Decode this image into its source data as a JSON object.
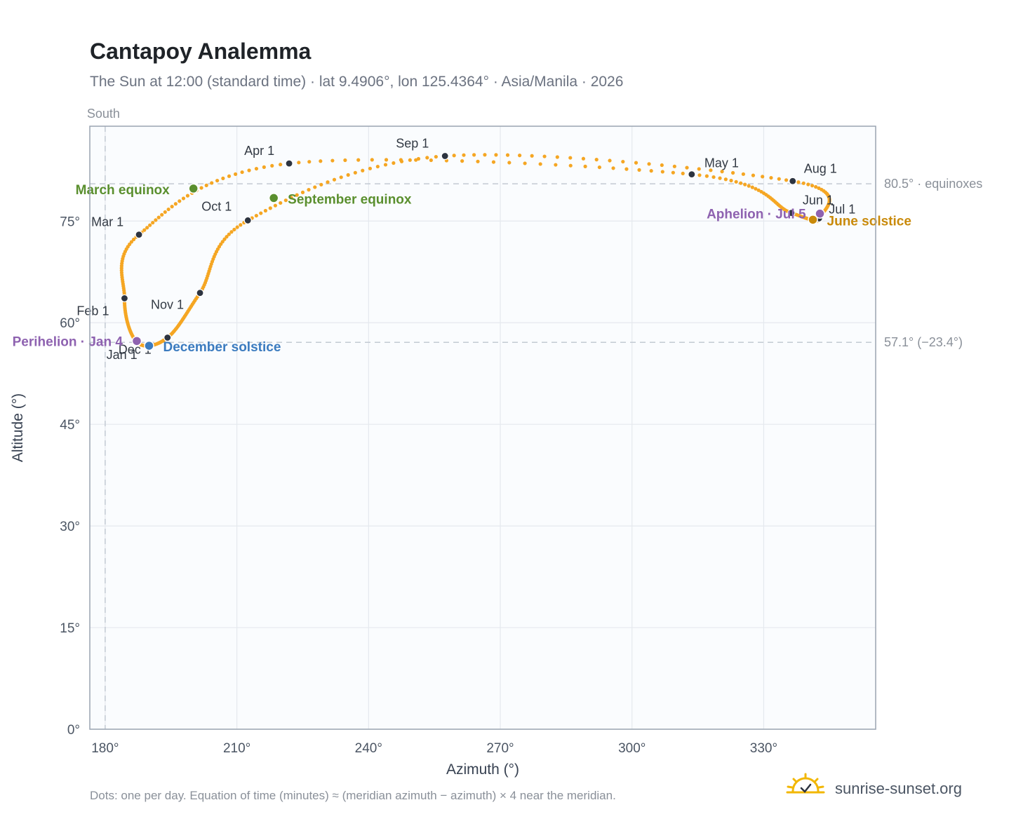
{
  "title": "Cantapoy Analemma",
  "subtitle": "The Sun at 12:00 (standard time) · lat 9.4906°, lon 125.4364° · Asia/Manila · 2026",
  "footnote": "Dots: one per day. Equation of time (minutes) ≈ (meridian azimuth − azimuth) × 4 near the meridian.",
  "brand": "sunrise-sunset.org",
  "colors": {
    "path": "#f5a623",
    "month_marker": "#2d3440",
    "equinox": "#5a8f2e",
    "december_solstice": "#3b7bbf",
    "june_solstice": "#c98a0b",
    "apsis": "#8e62b0",
    "grid": "#e5e9ee",
    "plot_bg": "#fafcfe",
    "frame": "#9aa4b1",
    "ref_line": "#c3cad3"
  },
  "chart_data": {
    "type": "scatter",
    "xlabel": "Azimuth (°)",
    "ylabel": "Altitude (°)",
    "xlim": [
      176.5,
      355.5
    ],
    "ylim": [
      0,
      89
    ],
    "x_ticks": [
      180,
      210,
      240,
      270,
      300,
      330
    ],
    "x_tick_labels": [
      "180°",
      "210°",
      "240°",
      "270°",
      "300°",
      "330°"
    ],
    "y_ticks": [
      0,
      15,
      30,
      45,
      60,
      75
    ],
    "y_tick_labels": [
      "0°",
      "15°",
      "30°",
      "45°",
      "60°",
      "75°"
    ],
    "grid": true,
    "meridian": {
      "azimuth": 180,
      "label": "South"
    },
    "reference_lines": [
      {
        "altitude": 80.5,
        "label": "80.5° · equinoxes"
      },
      {
        "altitude": 57.1,
        "label": "57.1° (−23.4°)"
      }
    ],
    "month_markers": [
      {
        "label": "Jan 1",
        "az": 187.3,
        "alt": 57.1
      },
      {
        "label": "Feb 1",
        "az": 184.4,
        "alt": 63.6
      },
      {
        "label": "Mar 1",
        "az": 187.7,
        "alt": 73.0
      },
      {
        "label": "Apr 1",
        "az": 221.9,
        "alt": 83.5
      },
      {
        "label": "May 1",
        "az": 313.6,
        "alt": 81.9
      },
      {
        "label": "Jun 1",
        "az": 336.3,
        "alt": 76.2
      },
      {
        "label": "Jul 1",
        "az": 342.6,
        "alt": 75.4
      },
      {
        "label": "Aug 1",
        "az": 336.6,
        "alt": 80.9
      },
      {
        "label": "Sep 1",
        "az": 257.4,
        "alt": 84.6
      },
      {
        "label": "Oct 1",
        "az": 212.5,
        "alt": 75.1
      },
      {
        "label": "Nov 1",
        "az": 201.6,
        "alt": 64.4
      },
      {
        "label": "Dec 1",
        "az": 194.2,
        "alt": 57.8
      }
    ],
    "events": [
      {
        "label": "March equinox",
        "az": 200.1,
        "alt": 79.8,
        "kind": "equinox"
      },
      {
        "label": "September equinox",
        "az": 218.4,
        "alt": 78.4,
        "kind": "equinox"
      },
      {
        "label": "December solstice",
        "az": 190.0,
        "alt": 56.6,
        "kind": "december_solstice"
      },
      {
        "label": "June solstice",
        "az": 341.2,
        "alt": 75.2,
        "kind": "june_solstice"
      },
      {
        "label": "Perihelion · Jan 4",
        "az": 187.2,
        "alt": 57.3,
        "kind": "apsis"
      },
      {
        "label": "Aphelion · Jul 5",
        "az": 342.8,
        "alt": 76.1,
        "kind": "apsis"
      }
    ]
  }
}
